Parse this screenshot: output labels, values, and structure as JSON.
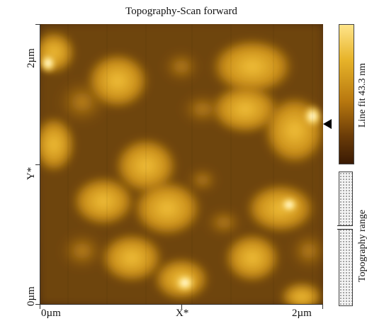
{
  "title": "Topography-Scan forward",
  "y_axis": {
    "top": "2µm",
    "name": "Y*",
    "bottom": "0µm"
  },
  "x_axis": {
    "left": "0µm",
    "name": "X*",
    "right": "2µm"
  },
  "colorbar": {
    "label": "Line fit 43.3 nm"
  },
  "range": {
    "label": "Topography range"
  },
  "colors": {
    "low": "#3a1a04",
    "mid": "#b8780f",
    "high": "#ffe58a"
  }
}
